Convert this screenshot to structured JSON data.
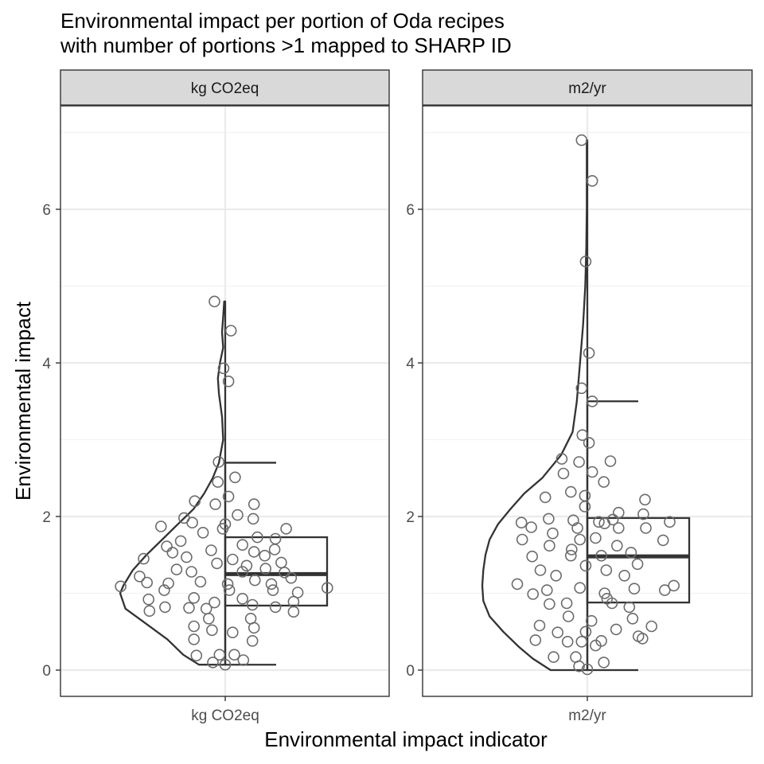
{
  "chart_data": {
    "type": "raincloud",
    "title_lines": [
      "Environmental impact per portion of Oda recipes",
      "with number of portions >1 mapped to SHARP ID"
    ],
    "xlabel": "Environmental impact indicator",
    "ylabel": "Environmental impact",
    "ylim": [
      -0.35,
      7.3
    ],
    "yticks": [
      0,
      2,
      4,
      6
    ],
    "grid": true,
    "panels": [
      {
        "name": "kg CO2eq",
        "strip_label": "kg CO2eq",
        "x_tick_label": "kg CO2eq",
        "box": {
          "min": 0.07,
          "q1": 0.84,
          "median": 1.25,
          "q3": 1.73,
          "max": 2.7
        },
        "violin": {
          "y": [
            0.07,
            0.2,
            0.4,
            0.6,
            0.8,
            1.0,
            1.1,
            1.3,
            1.5,
            1.7,
            1.9,
            2.1,
            2.3,
            2.5,
            2.7,
            3.0,
            3.3,
            3.6,
            3.8,
            4.0,
            4.2,
            4.4,
            4.6,
            4.8
          ],
          "width": [
            0.25,
            0.4,
            0.55,
            0.75,
            0.95,
            1.0,
            0.97,
            0.88,
            0.75,
            0.6,
            0.45,
            0.3,
            0.2,
            0.12,
            0.06,
            0.02,
            0.03,
            0.06,
            0.07,
            0.05,
            0.02,
            0.03,
            0.02,
            0.01
          ]
        },
        "points": [
          [
            -0.13,
            4.8
          ],
          [
            0.07,
            4.42
          ],
          [
            -0.02,
            3.93
          ],
          [
            0.04,
            3.76
          ],
          [
            -0.08,
            2.71
          ],
          [
            0.12,
            2.51
          ],
          [
            -0.09,
            2.45
          ],
          [
            0.04,
            2.26
          ],
          [
            -0.37,
            2.2
          ],
          [
            -0.12,
            2.16
          ],
          [
            0.35,
            2.16
          ],
          [
            0.15,
            2.02
          ],
          [
            -0.5,
            1.98
          ],
          [
            0.34,
            1.97
          ],
          [
            -0.4,
            1.92
          ],
          [
            0.0,
            1.9
          ],
          [
            -0.78,
            1.87
          ],
          [
            -0.03,
            1.84
          ],
          [
            0.74,
            1.84
          ],
          [
            -0.27,
            1.79
          ],
          [
            0.39,
            1.73
          ],
          [
            0.61,
            1.71
          ],
          [
            -0.54,
            1.68
          ],
          [
            -0.71,
            1.61
          ],
          [
            0.21,
            1.63
          ],
          [
            0.6,
            1.57
          ],
          [
            -0.17,
            1.56
          ],
          [
            0.35,
            1.54
          ],
          [
            -0.64,
            1.53
          ],
          [
            0.48,
            1.49
          ],
          [
            -0.99,
            1.45
          ],
          [
            -0.47,
            1.47
          ],
          [
            0.09,
            1.44
          ],
          [
            0.68,
            1.4
          ],
          [
            -0.1,
            1.39
          ],
          [
            0.26,
            1.36
          ],
          [
            0.49,
            1.32
          ],
          [
            -0.59,
            1.31
          ],
          [
            0.21,
            1.28
          ],
          [
            -0.41,
            1.28
          ],
          [
            0.72,
            1.27
          ],
          [
            -1.04,
            1.22
          ],
          [
            0.8,
            1.2
          ],
          [
            -0.3,
            1.15
          ],
          [
            0.03,
            1.12
          ],
          [
            0.36,
            1.17
          ],
          [
            -0.95,
            1.14
          ],
          [
            -0.69,
            1.13
          ],
          [
            0.56,
            1.12
          ],
          [
            1.24,
            1.07
          ],
          [
            -1.27,
            1.09
          ],
          [
            -0.74,
            1.04
          ],
          [
            0.05,
            1.04
          ],
          [
            0.58,
            1.04
          ],
          [
            0.88,
            1.01
          ],
          [
            -0.38,
            0.94
          ],
          [
            0.21,
            0.93
          ],
          [
            -0.93,
            0.92
          ],
          [
            0.83,
            0.89
          ],
          [
            -0.13,
            0.88
          ],
          [
            0.33,
            0.85
          ],
          [
            -0.73,
            0.82
          ],
          [
            -0.44,
            0.81
          ],
          [
            0.61,
            0.82
          ],
          [
            -0.23,
            0.8
          ],
          [
            0.83,
            0.76
          ],
          [
            -0.92,
            0.77
          ],
          [
            0.31,
            0.67
          ],
          [
            -0.2,
            0.67
          ],
          [
            -0.38,
            0.57
          ],
          [
            0.35,
            0.55
          ],
          [
            -0.16,
            0.52
          ],
          [
            0.09,
            0.49
          ],
          [
            -0.38,
            0.4
          ],
          [
            0.33,
            0.38
          ],
          [
            0.11,
            0.2
          ],
          [
            -0.07,
            0.2
          ],
          [
            -0.35,
            0.19
          ],
          [
            0.22,
            0.13
          ],
          [
            -0.15,
            0.1
          ],
          [
            0.0,
            0.07
          ]
        ]
      },
      {
        "name": "m2/yr",
        "strip_label": "m2/yr",
        "x_tick_label": "m2/yr",
        "box": {
          "min": 0.0,
          "q1": 0.88,
          "median": 1.48,
          "q3": 1.98,
          "max": 3.5
        },
        "violin": {
          "y": [
            0.0,
            0.15,
            0.3,
            0.5,
            0.7,
            0.9,
            1.1,
            1.3,
            1.5,
            1.7,
            1.9,
            2.1,
            2.3,
            2.5,
            2.8,
            3.1,
            3.5,
            4.0,
            4.5,
            5.0,
            5.5,
            6.0,
            6.5,
            6.9
          ],
          "width": [
            0.35,
            0.52,
            0.65,
            0.8,
            0.93,
            0.99,
            1.0,
            0.99,
            0.97,
            0.93,
            0.85,
            0.73,
            0.6,
            0.43,
            0.25,
            0.14,
            0.1,
            0.07,
            0.04,
            0.02,
            0.01,
            0.005,
            0.005,
            0.005
          ]
        },
        "points": [
          [
            -0.07,
            6.9
          ],
          [
            0.06,
            6.37
          ],
          [
            -0.02,
            5.32
          ],
          [
            0.02,
            4.13
          ],
          [
            -0.07,
            3.67
          ],
          [
            0.06,
            3.5
          ],
          [
            -0.06,
            3.06
          ],
          [
            0.02,
            2.96
          ],
          [
            0.28,
            2.72
          ],
          [
            -0.31,
            2.75
          ],
          [
            -0.1,
            2.71
          ],
          [
            0.06,
            2.58
          ],
          [
            0.2,
            2.45
          ],
          [
            -0.29,
            2.56
          ],
          [
            -0.2,
            2.32
          ],
          [
            -0.51,
            2.25
          ],
          [
            -0.03,
            2.27
          ],
          [
            0.7,
            2.22
          ],
          [
            0.38,
            2.05
          ],
          [
            -0.03,
            2.13
          ],
          [
            0.68,
            2.03
          ],
          [
            0.31,
            1.96
          ],
          [
            -0.47,
            1.97
          ],
          [
            -0.17,
            1.95
          ],
          [
            0.14,
            1.93
          ],
          [
            -0.8,
            1.92
          ],
          [
            1.0,
            1.93
          ],
          [
            0.21,
            1.91
          ],
          [
            -0.68,
            1.86
          ],
          [
            -0.12,
            1.85
          ],
          [
            0.38,
            1.85
          ],
          [
            0.71,
            1.85
          ],
          [
            -0.42,
            1.78
          ],
          [
            0.1,
            1.72
          ],
          [
            -0.79,
            1.7
          ],
          [
            -0.09,
            1.7
          ],
          [
            0.92,
            1.69
          ],
          [
            -0.46,
            1.62
          ],
          [
            0.36,
            1.62
          ],
          [
            -0.19,
            1.57
          ],
          [
            -0.67,
            1.48
          ],
          [
            0.53,
            1.53
          ],
          [
            0.17,
            1.49
          ],
          [
            -0.2,
            1.49
          ],
          [
            0.61,
            1.38
          ],
          [
            -0.02,
            1.36
          ],
          [
            -0.57,
            1.3
          ],
          [
            0.23,
            1.3
          ],
          [
            -0.38,
            1.23
          ],
          [
            0.45,
            1.23
          ],
          [
            -0.85,
            1.12
          ],
          [
            0.94,
            1.04
          ],
          [
            -0.09,
            1.07
          ],
          [
            1.05,
            1.1
          ],
          [
            0.57,
            1.06
          ],
          [
            -0.49,
            1.04
          ],
          [
            0.21,
            1.0
          ],
          [
            -0.66,
            0.99
          ],
          [
            0.24,
            0.93
          ],
          [
            0.3,
            0.87
          ],
          [
            0.51,
            0.82
          ],
          [
            -0.25,
            0.87
          ],
          [
            -0.46,
            0.86
          ],
          [
            0.55,
            0.67
          ],
          [
            -0.23,
            0.7
          ],
          [
            0.05,
            0.64
          ],
          [
            -0.58,
            0.58
          ],
          [
            0.78,
            0.57
          ],
          [
            0.35,
            0.53
          ],
          [
            -0.02,
            0.5
          ],
          [
            -0.36,
            0.49
          ],
          [
            0.62,
            0.44
          ],
          [
            0.17,
            0.38
          ],
          [
            0.1,
            0.32
          ],
          [
            -0.63,
            0.39
          ],
          [
            0.67,
            0.41
          ],
          [
            -0.07,
            0.37
          ],
          [
            -0.24,
            0.37
          ],
          [
            -0.14,
            0.17
          ],
          [
            -0.41,
            0.17
          ],
          [
            0.2,
            0.1
          ],
          [
            -0.1,
            0.05
          ],
          [
            0.0,
            0.01
          ]
        ]
      }
    ]
  }
}
